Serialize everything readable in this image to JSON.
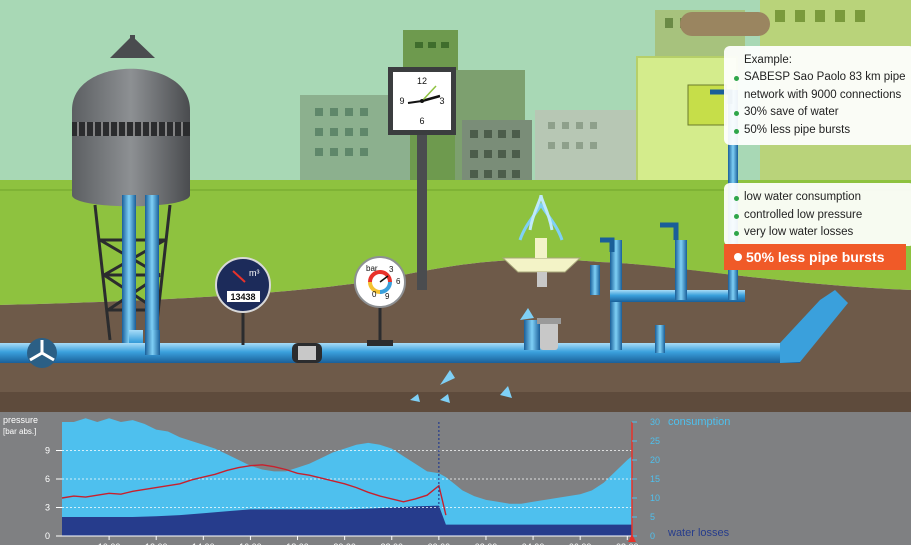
{
  "example_box": {
    "title": "Example:",
    "items": [
      "SABESP Sao Paolo 83 km pipe network with 9000 connections",
      "30% save of water",
      "50% less pipe bursts"
    ]
  },
  "benefits_box": {
    "items": [
      "low water consumption",
      "controlled low pressure",
      "very low water losses"
    ],
    "highlight": "50% less pipe bursts"
  },
  "clock": {
    "numerals": [
      "12",
      "3",
      "6",
      "9"
    ]
  },
  "flow_meter": {
    "unit": "m³",
    "reading": "13438"
  },
  "pressure_gauge": {
    "unit": "bar",
    "numerals": [
      "0",
      "3",
      "6",
      "9"
    ]
  },
  "colors": {
    "sky": "#a6d5b2",
    "grass": "#8ec23f",
    "soil": "#6e5a49",
    "pipe": "#3aa0dc",
    "banner": "#f05a28",
    "consumption_area": "#4ec0ee",
    "losses_area": "#263c8c",
    "pressure_line": "#c8202d"
  },
  "chart_data": {
    "type": "area",
    "left_axis": {
      "label_line1": "pressure",
      "label_line2": "[bar abs.]",
      "ticks": [
        "0",
        "3",
        "6",
        "9"
      ],
      "ylim": [
        0,
        12
      ]
    },
    "right_axis": {
      "ticks": [
        "0",
        "5",
        "10",
        "15",
        "20",
        "25",
        "30"
      ],
      "ylim": [
        0,
        30
      ]
    },
    "x_ticks": [
      "10:00",
      "12:00",
      "14:00",
      "16:00",
      "18:00",
      "20:00",
      "22:00",
      "00:00",
      "02:00",
      "04:00",
      "06:00",
      "08:00"
    ],
    "x_tick_values": [
      10,
      12,
      14,
      16,
      18,
      20,
      22,
      24,
      26,
      28,
      30,
      32
    ],
    "xlim": [
      8,
      32.2
    ],
    "marker_x": 24,
    "grid": true,
    "series": [
      {
        "name": "consumption",
        "axis": "right",
        "x": [
          8,
          8.5,
          9,
          9.5,
          10,
          10.5,
          11,
          11.5,
          12,
          12.5,
          13,
          13.5,
          14,
          14.5,
          15,
          15.5,
          16,
          16.5,
          17,
          17.5,
          18,
          18.5,
          19,
          19.5,
          20,
          20.5,
          21,
          21.5,
          22,
          22.5,
          23,
          23.5,
          24,
          24.3,
          24.6,
          25,
          25.5,
          26,
          26.5,
          27,
          27.5,
          28,
          28.5,
          29,
          29.5,
          30,
          30.5,
          31,
          31.5,
          32,
          32.2
        ],
        "values": [
          30,
          30,
          31,
          30,
          31,
          30,
          30.5,
          29.5,
          28,
          27.5,
          26,
          25,
          24,
          23,
          21.5,
          20,
          18.5,
          17.5,
          17,
          17,
          18,
          19,
          20.5,
          22,
          23,
          24,
          24.5,
          24,
          23,
          21,
          19,
          17,
          16.5,
          15.5,
          14,
          12,
          10.5,
          9.5,
          9,
          8.5,
          8.5,
          9,
          9.5,
          10,
          10.5,
          11,
          12,
          14,
          17,
          20,
          21
        ]
      },
      {
        "name": "water losses",
        "axis": "right",
        "x": [
          8,
          9,
          10,
          11,
          12,
          13,
          14,
          15,
          16,
          17,
          18,
          19,
          20,
          21,
          22,
          23,
          24,
          24.3,
          25,
          26,
          27,
          28,
          29,
          30,
          31,
          32,
          32.2
        ],
        "values": [
          5,
          5,
          5,
          5,
          5.2,
          5.5,
          6,
          6.5,
          7,
          7,
          7,
          7,
          7,
          7.2,
          7.5,
          7.8,
          8,
          3,
          3,
          3,
          3,
          3,
          3,
          3,
          3,
          3,
          3
        ]
      },
      {
        "name": "pressure",
        "axis": "left",
        "x": [
          8,
          8.5,
          9,
          9.5,
          10,
          10.5,
          11,
          11.5,
          12,
          12.5,
          13,
          13.5,
          14,
          14.5,
          15,
          15.5,
          16,
          16.5,
          17,
          17.5,
          18,
          18.5,
          19,
          19.5,
          20,
          20.5,
          21,
          21.5,
          22,
          22.5,
          23,
          23.5,
          24,
          24.3
        ],
        "values": [
          4,
          4.2,
          4.1,
          4.3,
          4.5,
          4.4,
          4.7,
          4.9,
          5.1,
          5.3,
          5.5,
          5.9,
          6.2,
          6.5,
          6.9,
          7.2,
          7.4,
          7.5,
          7.3,
          7.0,
          6.6,
          6.4,
          6.1,
          5.8,
          5.5,
          5.1,
          4.6,
          4.2,
          3.9,
          3.6,
          3.9,
          4.3,
          5.3,
          2.2
        ]
      }
    ],
    "legend": [
      "consumption",
      "water losses"
    ],
    "legend_placement": "right"
  }
}
